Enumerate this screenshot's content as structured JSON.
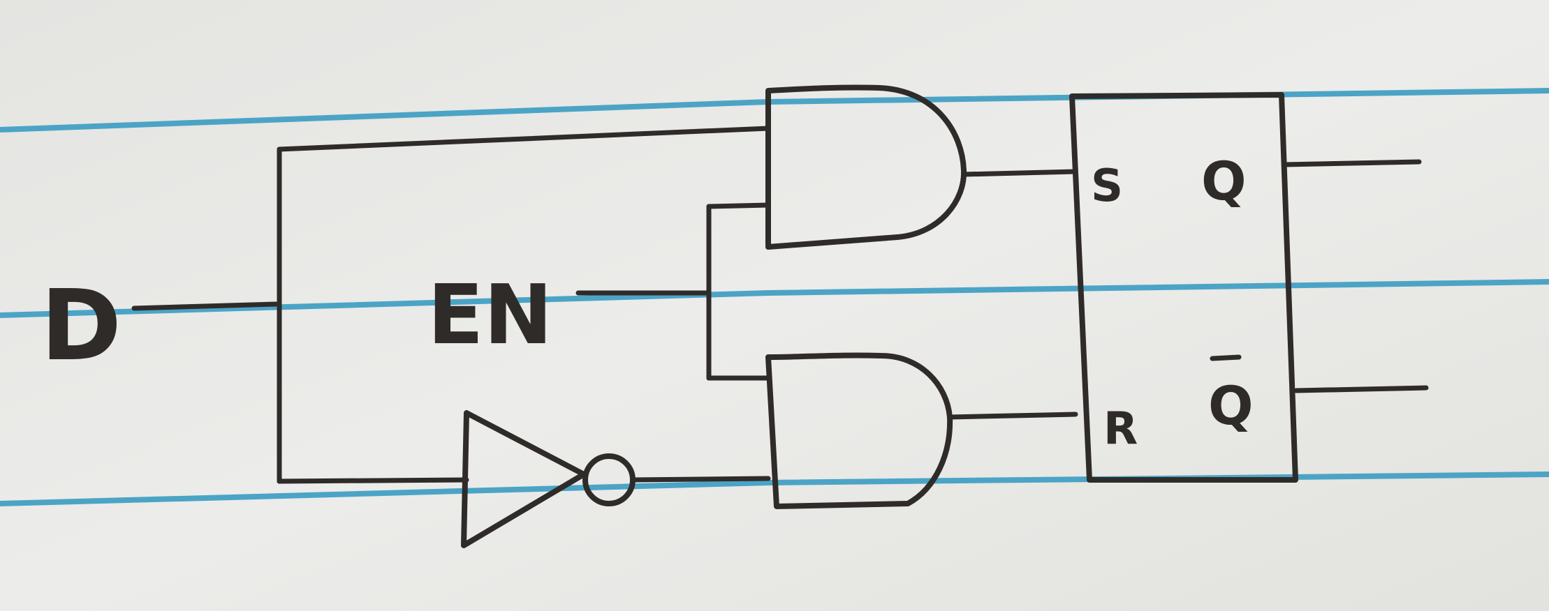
{
  "colors": {
    "paper": "#e9e9e6",
    "ink": "#2f2b29",
    "ruled_line": "#3a9cc2"
  },
  "diagram": {
    "input_d": "D",
    "input_en": "EN",
    "latch": {
      "set_label": "S",
      "reset_label": "R",
      "q_label": "Q",
      "q_bar_label": "Q"
    }
  }
}
